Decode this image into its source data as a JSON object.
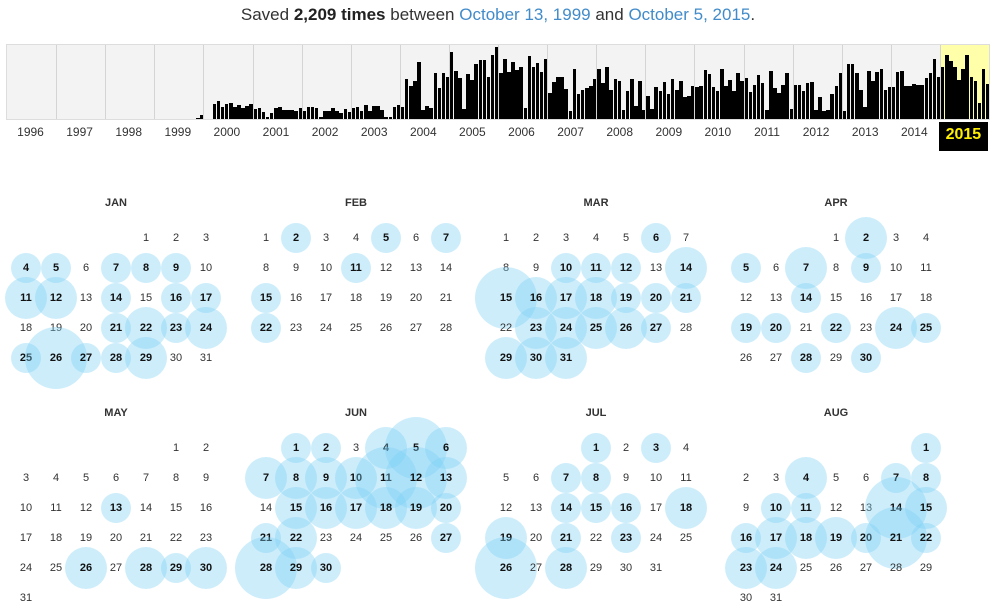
{
  "summary": {
    "prefix": "Saved ",
    "count_text": "2,209 times",
    "between": " between ",
    "start_date": "October 13, 1999",
    "and": " and ",
    "end_date": "October 5, 2015",
    "suffix": "."
  },
  "timeline": {
    "years": [
      "1996",
      "1997",
      "1998",
      "1999",
      "2000",
      "2001",
      "2002",
      "2003",
      "2004",
      "2005",
      "2006",
      "2007",
      "2008",
      "2009",
      "2010",
      "2011",
      "2012",
      "2013",
      "2014",
      "2015"
    ],
    "selected_year": "2015",
    "year_activity": [
      0,
      0,
      0,
      0.05,
      0.25,
      0.15,
      0.15,
      0.18,
      0.75,
      0.92,
      0.75,
      0.6,
      0.65,
      0.5,
      0.6,
      0.6,
      0.55,
      0.7,
      0.75,
      0.85
    ],
    "bar_color": "#000000",
    "highlight_color": "#fffea9"
  },
  "calendar": {
    "bubble_color": "#7dd0f4",
    "months": [
      {
        "name": "JAN",
        "start": 4,
        "days": 31,
        "saved": {
          "4": 1,
          "5": 1,
          "7": 1,
          "8": 1,
          "9": 1,
          "11": 2,
          "12": 2,
          "14": 1,
          "16": 1,
          "17": 1,
          "21": 1,
          "22": 2,
          "23": 1,
          "24": 2,
          "25": 1,
          "26": 3,
          "27": 1,
          "28": 1,
          "29": 2
        }
      },
      {
        "name": "FEB",
        "start": 0,
        "days": 28,
        "saved": {
          "2": 1,
          "5": 1,
          "7": 1,
          "11": 1,
          "15": 1,
          "22": 1
        }
      },
      {
        "name": "MAR",
        "start": 0,
        "days": 31,
        "saved": {
          "6": 1,
          "10": 1,
          "11": 1,
          "12": 1,
          "14": 2,
          "15": 3,
          "16": 2,
          "17": 2,
          "18": 2,
          "19": 1,
          "20": 1,
          "21": 1,
          "23": 2,
          "24": 2,
          "25": 2,
          "26": 2,
          "27": 1,
          "29": 2,
          "30": 2,
          "31": 2
        }
      },
      {
        "name": "APR",
        "start": 3,
        "days": 30,
        "saved": {
          "2": 2,
          "5": 1,
          "7": 2,
          "9": 1,
          "14": 1,
          "19": 1,
          "20": 1,
          "22": 1,
          "24": 2,
          "25": 1,
          "28": 1,
          "30": 1
        }
      },
      {
        "name": "MAY",
        "start": 5,
        "days": 31,
        "saved": {
          "13": 1,
          "26": 2,
          "28": 2,
          "29": 1,
          "30": 2
        }
      },
      {
        "name": "JUN",
        "start": 1,
        "days": 30,
        "saved": {
          "1": 1,
          "2": 1,
          "4": 2,
          "5": 3,
          "6": 2,
          "7": 2,
          "8": 2,
          "9": 2,
          "10": 2,
          "11": 3,
          "12": 3,
          "13": 2,
          "15": 2,
          "16": 2,
          "17": 2,
          "18": 2,
          "19": 2,
          "20": 1,
          "21": 1,
          "22": 2,
          "27": 1,
          "28": 3,
          "29": 2,
          "30": 1
        }
      },
      {
        "name": "JUL",
        "start": 3,
        "days": 31,
        "saved": {
          "1": 1,
          "3": 1,
          "7": 1,
          "8": 1,
          "14": 1,
          "15": 1,
          "16": 1,
          "18": 2,
          "19": 2,
          "21": 1,
          "23": 1,
          "26": 3,
          "28": 2
        }
      },
      {
        "name": "AUG",
        "start": 6,
        "days": 31,
        "saved": {
          "1": 1,
          "4": 2,
          "7": 1,
          "8": 1,
          "10": 1,
          "11": 1,
          "14": 3,
          "15": 2,
          "16": 1,
          "17": 2,
          "18": 2,
          "19": 2,
          "20": 1,
          "21": 3,
          "22": 1,
          "23": 2,
          "24": 2
        }
      }
    ]
  }
}
